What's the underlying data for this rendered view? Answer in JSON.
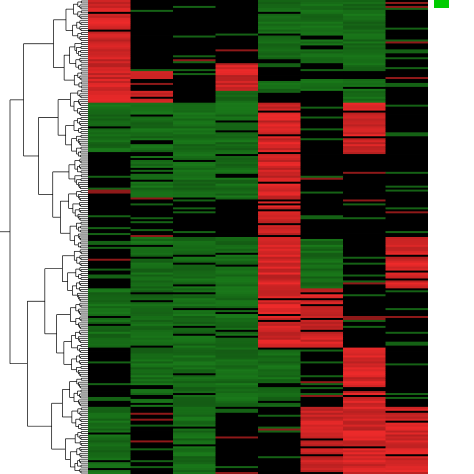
{
  "chart_data": {
    "type": "heatmap",
    "title": "",
    "xlabel": "",
    "ylabel": "",
    "columns": 8,
    "rows": 240,
    "row_dendrogram": true,
    "color_scale": {
      "low": "#1a7a1a",
      "mid": "#000000",
      "high": "#ee2a2a",
      "min": -1,
      "max": 1
    },
    "legend_color": "#00cc00",
    "legend_placement": "top-right",
    "row_blocks": [
      {
        "rows": 32,
        "levels": [
          1,
          0,
          0,
          0,
          -1,
          -1,
          -1,
          0
        ]
      },
      {
        "rows": 4,
        "levels": [
          1,
          0,
          0,
          1,
          -1,
          -1,
          -1,
          0
        ]
      },
      {
        "rows": 4,
        "levels": [
          1,
          1,
          0,
          1,
          0,
          0,
          0,
          0
        ]
      },
      {
        "rows": 6,
        "levels": [
          1,
          0,
          0,
          1,
          -1,
          -1,
          -1,
          0
        ]
      },
      {
        "rows": 6,
        "levels": [
          1,
          1,
          0,
          -1,
          0,
          0,
          -1,
          0
        ]
      },
      {
        "rows": 26,
        "levels": [
          -1,
          -1,
          -1,
          -1,
          1,
          0,
          1,
          0
        ]
      },
      {
        "rows": 22,
        "levels": [
          0,
          -1,
          -1,
          -1,
          1,
          0,
          0,
          0
        ]
      },
      {
        "rows": 20,
        "levels": [
          0,
          0,
          0,
          0,
          1,
          0,
          0,
          0
        ]
      },
      {
        "rows": 26,
        "levels": [
          0,
          -1,
          -1,
          -1,
          1,
          -1,
          0,
          1
        ]
      },
      {
        "rows": 30,
        "levels": [
          -1,
          -1,
          -1,
          -1,
          1,
          1,
          0,
          0
        ]
      },
      {
        "rows": 30,
        "levels": [
          0,
          -1,
          -1,
          -1,
          -1,
          0,
          1,
          0
        ]
      },
      {
        "rows": 34,
        "levels": [
          -1,
          0,
          -1,
          0,
          0,
          1,
          1,
          1
        ]
      }
    ]
  }
}
